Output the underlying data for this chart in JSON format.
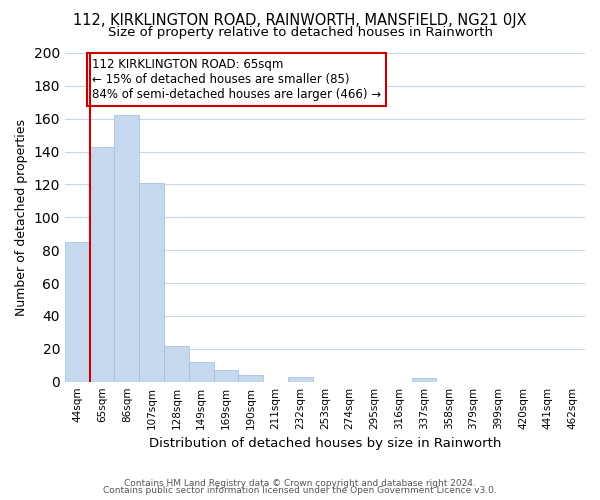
{
  "title": "112, KIRKLINGTON ROAD, RAINWORTH, MANSFIELD, NG21 0JX",
  "subtitle": "Size of property relative to detached houses in Rainworth",
  "xlabel": "Distribution of detached houses by size in Rainworth",
  "ylabel": "Number of detached properties",
  "bar_labels": [
    "44sqm",
    "65sqm",
    "86sqm",
    "107sqm",
    "128sqm",
    "149sqm",
    "169sqm",
    "190sqm",
    "211sqm",
    "232sqm",
    "253sqm",
    "274sqm",
    "295sqm",
    "316sqm",
    "337sqm",
    "358sqm",
    "379sqm",
    "399sqm",
    "420sqm",
    "441sqm",
    "462sqm"
  ],
  "bar_values": [
    85,
    143,
    162,
    121,
    22,
    12,
    7,
    4,
    0,
    3,
    0,
    0,
    0,
    0,
    2,
    0,
    0,
    0,
    0,
    0,
    0
  ],
  "bar_color": "#c5d8ed",
  "bar_edge_color": "#a0bcd8",
  "red_line_x": 0.5,
  "annotation_text": "112 KIRKLINGTON ROAD: 65sqm\n← 15% of detached houses are smaller (85)\n84% of semi-detached houses are larger (466) →",
  "annotation_box_color": "#ffffff",
  "annotation_border_color": "#cc0000",
  "ylim": [
    0,
    200
  ],
  "yticks": [
    0,
    20,
    40,
    60,
    80,
    100,
    120,
    140,
    160,
    180,
    200
  ],
  "footer_line1": "Contains HM Land Registry data © Crown copyright and database right 2024.",
  "footer_line2": "Contains public sector information licensed under the Open Government Licence v3.0.",
  "background_color": "#ffffff",
  "grid_color": "#c8d8e8",
  "title_fontsize": 10.5,
  "subtitle_fontsize": 9.5,
  "annotation_fontsize": 8.5,
  "xlabel_fontsize": 9.5,
  "ylabel_fontsize": 9,
  "footer_fontsize": 6.5
}
